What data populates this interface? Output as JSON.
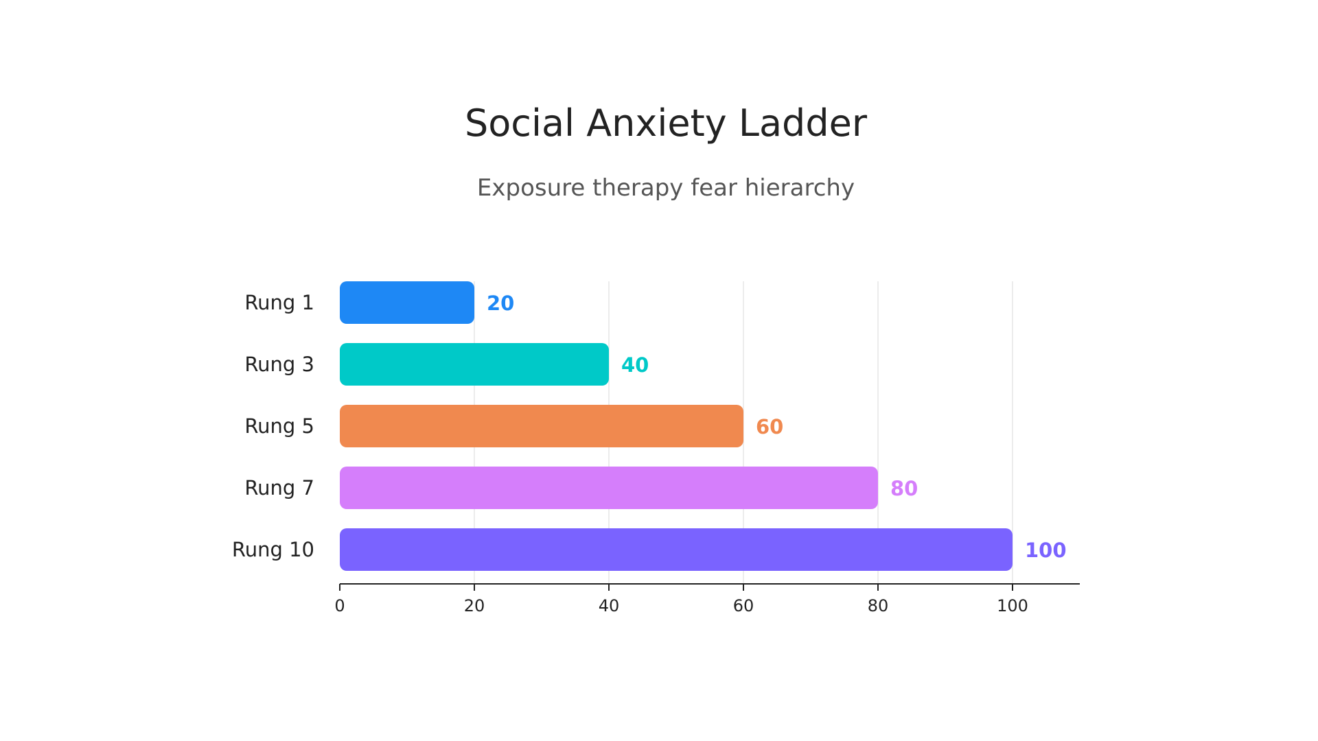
{
  "chart_data": {
    "type": "bar",
    "orientation": "horizontal",
    "title": "Social Anxiety Ladder",
    "subtitle": "Exposure therapy fear hierarchy",
    "xlabel": "",
    "ylabel": "",
    "categories": [
      "Rung 1",
      "Rung 3",
      "Rung 5",
      "Rung 7",
      "Rung 10"
    ],
    "values": [
      20,
      40,
      60,
      80,
      100
    ],
    "colors": [
      "#1E88F5",
      "#00C9C8",
      "#F0894F",
      "#D57EFB",
      "#7A63FF"
    ],
    "xlim": [
      0,
      110
    ],
    "x_ticks": [
      0,
      20,
      40,
      60,
      80,
      100
    ],
    "grid": true,
    "legend": "none"
  }
}
